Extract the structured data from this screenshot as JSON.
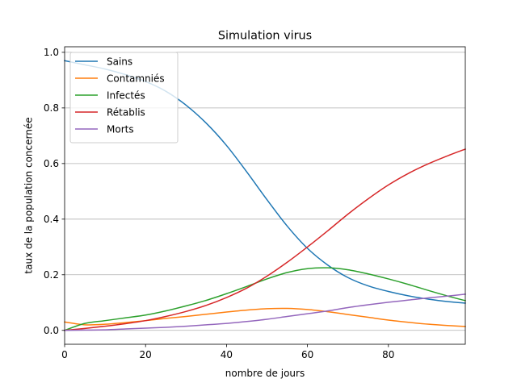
{
  "chart_data": {
    "type": "line",
    "title": "Simulation virus",
    "xlabel": "nombre de jours",
    "ylabel": "taux de la population concernée",
    "xlim": [
      0,
      99
    ],
    "ylim": [
      -0.05,
      1.02
    ],
    "xticks": [
      0,
      20,
      40,
      60,
      80
    ],
    "yticks": [
      0.0,
      0.2,
      0.4,
      0.6,
      0.8,
      1.0
    ],
    "xtick_labels": [
      "0",
      "20",
      "40",
      "60",
      "80"
    ],
    "ytick_labels": [
      "0.0",
      "0.2",
      "0.4",
      "0.6",
      "0.8",
      "1.0"
    ],
    "grid": "horizontal",
    "legend_position": "top-left",
    "x": [
      0,
      5,
      10,
      15,
      20,
      25,
      30,
      35,
      40,
      45,
      50,
      55,
      60,
      65,
      70,
      75,
      80,
      85,
      90,
      95,
      99
    ],
    "series": [
      {
        "name": "Sains",
        "color": "#1f77b4",
        "values": [
          0.97,
          0.955,
          0.94,
          0.92,
          0.895,
          0.86,
          0.81,
          0.745,
          0.665,
          0.57,
          0.47,
          0.375,
          0.295,
          0.235,
          0.19,
          0.16,
          0.14,
          0.124,
          0.112,
          0.103,
          0.098
        ]
      },
      {
        "name": "Contamniés",
        "color": "#ff7f0e",
        "values": [
          0.03,
          0.02,
          0.022,
          0.028,
          0.035,
          0.043,
          0.05,
          0.058,
          0.066,
          0.073,
          0.078,
          0.079,
          0.075,
          0.067,
          0.057,
          0.047,
          0.037,
          0.029,
          0.022,
          0.017,
          0.014
        ]
      },
      {
        "name": "Infectés",
        "color": "#2ca02c",
        "values": [
          0.0,
          0.025,
          0.035,
          0.045,
          0.055,
          0.07,
          0.088,
          0.108,
          0.132,
          0.158,
          0.185,
          0.208,
          0.222,
          0.225,
          0.218,
          0.203,
          0.185,
          0.165,
          0.143,
          0.122,
          0.107
        ]
      },
      {
        "name": "Rétablis",
        "color": "#d62728",
        "values": [
          0.0,
          0.007,
          0.015,
          0.024,
          0.035,
          0.05,
          0.068,
          0.09,
          0.118,
          0.152,
          0.195,
          0.245,
          0.3,
          0.358,
          0.418,
          0.473,
          0.523,
          0.565,
          0.6,
          0.63,
          0.652
        ]
      },
      {
        "name": "Morts",
        "color": "#9467bd",
        "values": [
          0.0,
          0.001,
          0.002,
          0.005,
          0.008,
          0.011,
          0.015,
          0.02,
          0.025,
          0.032,
          0.04,
          0.05,
          0.06,
          0.07,
          0.082,
          0.092,
          0.101,
          0.109,
          0.117,
          0.124,
          0.13
        ]
      }
    ]
  }
}
